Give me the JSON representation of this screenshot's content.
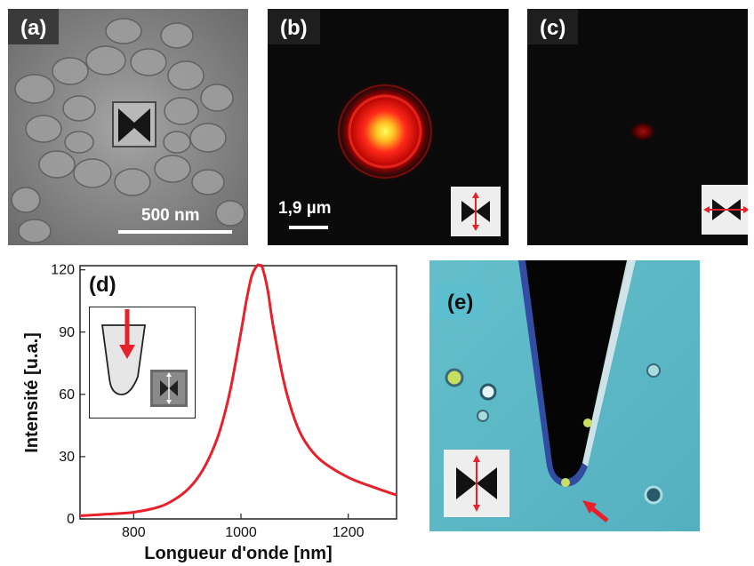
{
  "panel_a": {
    "label": "(a)",
    "scale_label": "500 nm"
  },
  "panel_b": {
    "label": "(b)",
    "scale_label": "1,9 µm"
  },
  "panel_c": {
    "label": "(c)"
  },
  "panel_d": {
    "label": "(d)"
  },
  "panel_e": {
    "label": "(e)"
  },
  "chart_data": {
    "type": "line",
    "xlabel": "Longueur d'onde [nm]",
    "ylabel": "Intensité [u.a.]",
    "xlim": [
      700,
      1290
    ],
    "ylim": [
      0,
      122
    ],
    "xticks": [
      800,
      1000,
      1200
    ],
    "yticks": [
      0,
      30,
      60,
      90,
      120
    ],
    "grid": false,
    "series": [
      {
        "color": "#e8202a",
        "x": [
          700,
          750,
          800,
          850,
          880,
          900,
          920,
          940,
          960,
          980,
          1000,
          1010,
          1020,
          1030,
          1035,
          1040,
          1050,
          1060,
          1080,
          1100,
          1120,
          1150,
          1200,
          1250,
          1290
        ],
        "y": [
          1.5,
          2.3,
          3.2,
          6,
          10,
          14,
          20,
          29,
          42,
          62,
          90,
          105,
          117,
          122,
          122,
          121,
          110,
          93,
          66,
          48,
          37,
          28,
          20,
          15,
          11.5
        ]
      }
    ]
  },
  "colors": {
    "curve": "#e8202a",
    "arrow": "#e8202a",
    "sem_bg": "#8a8a8a",
    "optical_bg": "#5cb8c6"
  }
}
